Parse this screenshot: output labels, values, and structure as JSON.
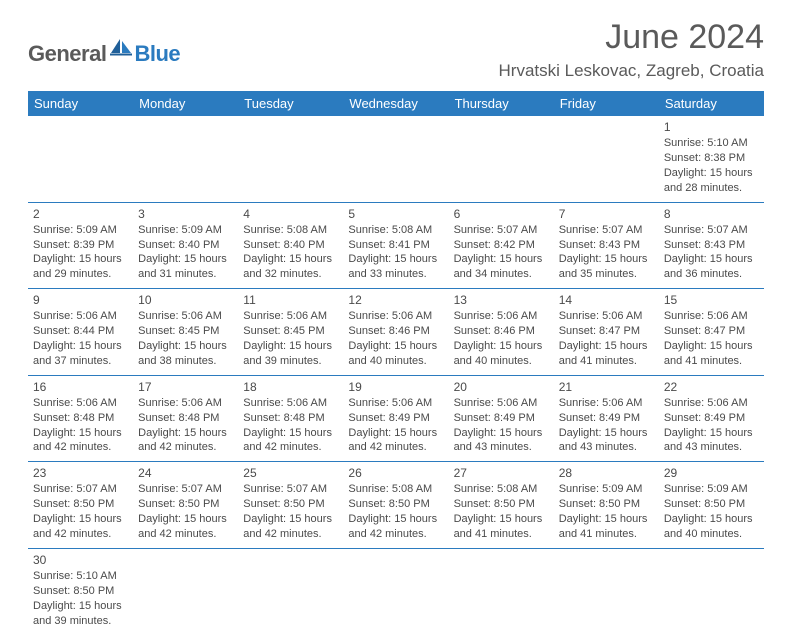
{
  "brand": {
    "general": "General",
    "blue": "Blue"
  },
  "title": {
    "month": "June 2024",
    "location": "Hrvatski Leskovac, Zagreb, Croatia"
  },
  "colors": {
    "header_bg": "#2b7bbf",
    "header_text": "#ffffff",
    "body_text": "#4a4a4a",
    "title_text": "#5a5a5a",
    "rule": "#2b7bbf",
    "empty_bg": "#f1f1f1"
  },
  "daynames": [
    "Sunday",
    "Monday",
    "Tuesday",
    "Wednesday",
    "Thursday",
    "Friday",
    "Saturday"
  ],
  "weeks": [
    [
      null,
      null,
      null,
      null,
      null,
      null,
      {
        "n": "1",
        "sr": "Sunrise: 5:10 AM",
        "ss": "Sunset: 8:38 PM",
        "d1": "Daylight: 15 hours",
        "d2": "and 28 minutes."
      }
    ],
    [
      {
        "n": "2",
        "sr": "Sunrise: 5:09 AM",
        "ss": "Sunset: 8:39 PM",
        "d1": "Daylight: 15 hours",
        "d2": "and 29 minutes."
      },
      {
        "n": "3",
        "sr": "Sunrise: 5:09 AM",
        "ss": "Sunset: 8:40 PM",
        "d1": "Daylight: 15 hours",
        "d2": "and 31 minutes."
      },
      {
        "n": "4",
        "sr": "Sunrise: 5:08 AM",
        "ss": "Sunset: 8:40 PM",
        "d1": "Daylight: 15 hours",
        "d2": "and 32 minutes."
      },
      {
        "n": "5",
        "sr": "Sunrise: 5:08 AM",
        "ss": "Sunset: 8:41 PM",
        "d1": "Daylight: 15 hours",
        "d2": "and 33 minutes."
      },
      {
        "n": "6",
        "sr": "Sunrise: 5:07 AM",
        "ss": "Sunset: 8:42 PM",
        "d1": "Daylight: 15 hours",
        "d2": "and 34 minutes."
      },
      {
        "n": "7",
        "sr": "Sunrise: 5:07 AM",
        "ss": "Sunset: 8:43 PM",
        "d1": "Daylight: 15 hours",
        "d2": "and 35 minutes."
      },
      {
        "n": "8",
        "sr": "Sunrise: 5:07 AM",
        "ss": "Sunset: 8:43 PM",
        "d1": "Daylight: 15 hours",
        "d2": "and 36 minutes."
      }
    ],
    [
      {
        "n": "9",
        "sr": "Sunrise: 5:06 AM",
        "ss": "Sunset: 8:44 PM",
        "d1": "Daylight: 15 hours",
        "d2": "and 37 minutes."
      },
      {
        "n": "10",
        "sr": "Sunrise: 5:06 AM",
        "ss": "Sunset: 8:45 PM",
        "d1": "Daylight: 15 hours",
        "d2": "and 38 minutes."
      },
      {
        "n": "11",
        "sr": "Sunrise: 5:06 AM",
        "ss": "Sunset: 8:45 PM",
        "d1": "Daylight: 15 hours",
        "d2": "and 39 minutes."
      },
      {
        "n": "12",
        "sr": "Sunrise: 5:06 AM",
        "ss": "Sunset: 8:46 PM",
        "d1": "Daylight: 15 hours",
        "d2": "and 40 minutes."
      },
      {
        "n": "13",
        "sr": "Sunrise: 5:06 AM",
        "ss": "Sunset: 8:46 PM",
        "d1": "Daylight: 15 hours",
        "d2": "and 40 minutes."
      },
      {
        "n": "14",
        "sr": "Sunrise: 5:06 AM",
        "ss": "Sunset: 8:47 PM",
        "d1": "Daylight: 15 hours",
        "d2": "and 41 minutes."
      },
      {
        "n": "15",
        "sr": "Sunrise: 5:06 AM",
        "ss": "Sunset: 8:47 PM",
        "d1": "Daylight: 15 hours",
        "d2": "and 41 minutes."
      }
    ],
    [
      {
        "n": "16",
        "sr": "Sunrise: 5:06 AM",
        "ss": "Sunset: 8:48 PM",
        "d1": "Daylight: 15 hours",
        "d2": "and 42 minutes."
      },
      {
        "n": "17",
        "sr": "Sunrise: 5:06 AM",
        "ss": "Sunset: 8:48 PM",
        "d1": "Daylight: 15 hours",
        "d2": "and 42 minutes."
      },
      {
        "n": "18",
        "sr": "Sunrise: 5:06 AM",
        "ss": "Sunset: 8:48 PM",
        "d1": "Daylight: 15 hours",
        "d2": "and 42 minutes."
      },
      {
        "n": "19",
        "sr": "Sunrise: 5:06 AM",
        "ss": "Sunset: 8:49 PM",
        "d1": "Daylight: 15 hours",
        "d2": "and 42 minutes."
      },
      {
        "n": "20",
        "sr": "Sunrise: 5:06 AM",
        "ss": "Sunset: 8:49 PM",
        "d1": "Daylight: 15 hours",
        "d2": "and 43 minutes."
      },
      {
        "n": "21",
        "sr": "Sunrise: 5:06 AM",
        "ss": "Sunset: 8:49 PM",
        "d1": "Daylight: 15 hours",
        "d2": "and 43 minutes."
      },
      {
        "n": "22",
        "sr": "Sunrise: 5:06 AM",
        "ss": "Sunset: 8:49 PM",
        "d1": "Daylight: 15 hours",
        "d2": "and 43 minutes."
      }
    ],
    [
      {
        "n": "23",
        "sr": "Sunrise: 5:07 AM",
        "ss": "Sunset: 8:50 PM",
        "d1": "Daylight: 15 hours",
        "d2": "and 42 minutes."
      },
      {
        "n": "24",
        "sr": "Sunrise: 5:07 AM",
        "ss": "Sunset: 8:50 PM",
        "d1": "Daylight: 15 hours",
        "d2": "and 42 minutes."
      },
      {
        "n": "25",
        "sr": "Sunrise: 5:07 AM",
        "ss": "Sunset: 8:50 PM",
        "d1": "Daylight: 15 hours",
        "d2": "and 42 minutes."
      },
      {
        "n": "26",
        "sr": "Sunrise: 5:08 AM",
        "ss": "Sunset: 8:50 PM",
        "d1": "Daylight: 15 hours",
        "d2": "and 42 minutes."
      },
      {
        "n": "27",
        "sr": "Sunrise: 5:08 AM",
        "ss": "Sunset: 8:50 PM",
        "d1": "Daylight: 15 hours",
        "d2": "and 41 minutes."
      },
      {
        "n": "28",
        "sr": "Sunrise: 5:09 AM",
        "ss": "Sunset: 8:50 PM",
        "d1": "Daylight: 15 hours",
        "d2": "and 41 minutes."
      },
      {
        "n": "29",
        "sr": "Sunrise: 5:09 AM",
        "ss": "Sunset: 8:50 PM",
        "d1": "Daylight: 15 hours",
        "d2": "and 40 minutes."
      }
    ],
    [
      {
        "n": "30",
        "sr": "Sunrise: 5:10 AM",
        "ss": "Sunset: 8:50 PM",
        "d1": "Daylight: 15 hours",
        "d2": "and 39 minutes."
      },
      null,
      null,
      null,
      null,
      null,
      null
    ]
  ]
}
